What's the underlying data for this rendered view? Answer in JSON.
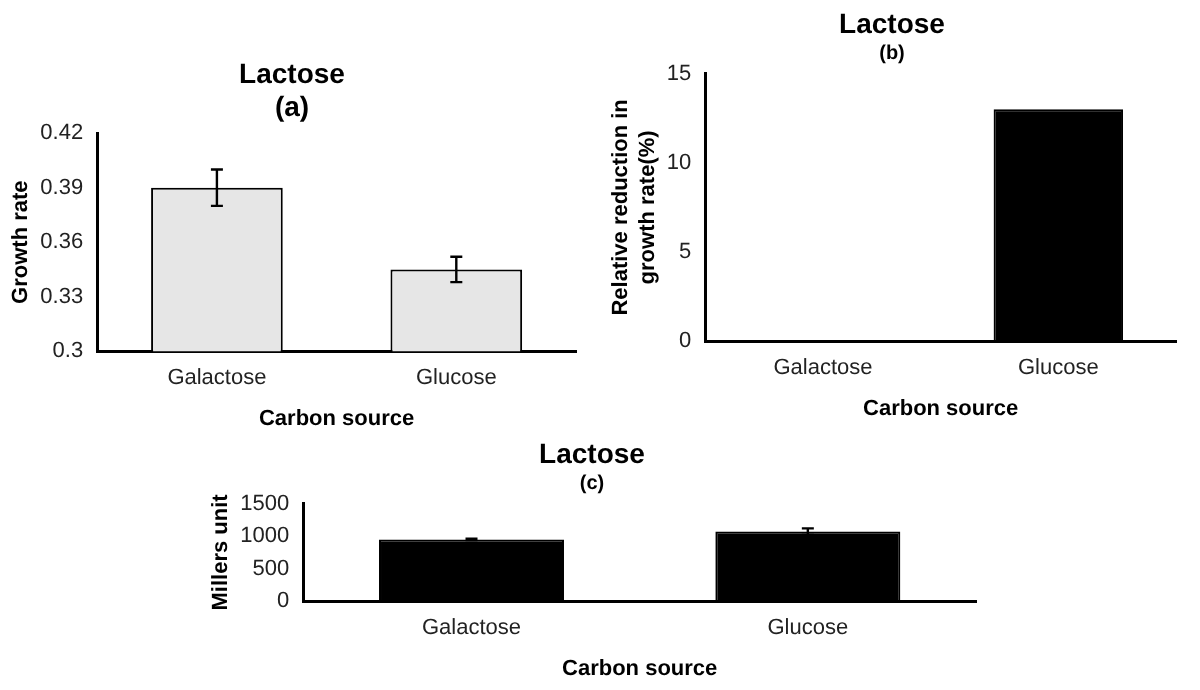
{
  "chart_data": [
    {
      "type": "bar",
      "title": "Lactose",
      "subtitle": "(a)",
      "xlabel": "Carbon source",
      "ylabel": "Growth rate",
      "categories": [
        "Galactose",
        "Glucose"
      ],
      "values": [
        0.39,
        0.345
      ],
      "errors": [
        0.01,
        0.007
      ],
      "color": "#e6e6e6",
      "ylim": [
        0.3,
        0.42
      ],
      "yticks": [
        0.3,
        0.33,
        0.36,
        0.39,
        0.42
      ],
      "grid": false,
      "legend": false
    },
    {
      "type": "bar",
      "title": "Lactose",
      "subtitle": "(b)",
      "xlabel": "Carbon source",
      "ylabel": "Relative reduction in growth rate(%)",
      "categories": [
        "Galactose",
        "Glucose"
      ],
      "values": [
        0,
        13
      ],
      "color": "#000000",
      "ylim": [
        0,
        15
      ],
      "yticks": [
        0,
        5,
        10,
        15
      ],
      "grid": false,
      "legend": false
    },
    {
      "type": "bar",
      "title": "Lactose",
      "subtitle": "(c)",
      "xlabel": "Carbon source",
      "ylabel": "Millers unit",
      "categories": [
        "Galactose",
        "Glucose"
      ],
      "values": [
        950,
        1070
      ],
      "errors": [
        10,
        50
      ],
      "color": "#000000",
      "ylim": [
        0,
        1500
      ],
      "yticks": [
        0,
        500,
        1000,
        1500
      ],
      "grid": false,
      "legend": false
    }
  ]
}
